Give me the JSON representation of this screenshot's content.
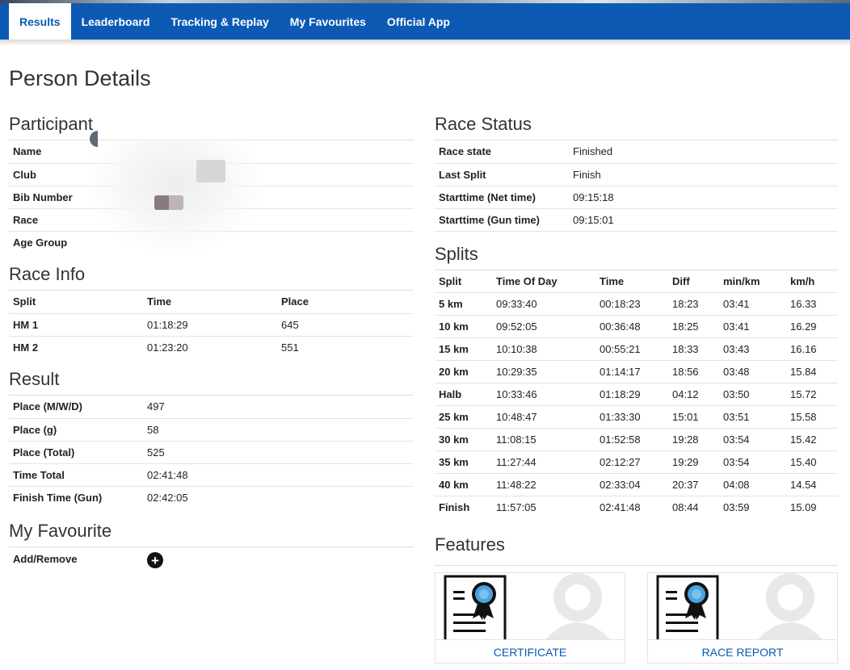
{
  "nav": {
    "items": [
      {
        "label": "Results",
        "active": true
      },
      {
        "label": "Leaderboard",
        "active": false
      },
      {
        "label": "Tracking & Replay",
        "active": false
      },
      {
        "label": "My Favourites",
        "active": false
      },
      {
        "label": "Official App",
        "active": false
      }
    ]
  },
  "page_title": "Person Details",
  "participant": {
    "title": "Participant",
    "rows": [
      {
        "label": "Name",
        "value": ""
      },
      {
        "label": "Club",
        "value": ""
      },
      {
        "label": "Bib Number",
        "value": ""
      },
      {
        "label": "Race",
        "value": ""
      },
      {
        "label": "Age Group",
        "value": ""
      }
    ]
  },
  "race_info": {
    "title": "Race Info",
    "headers": [
      "Split",
      "Time",
      "Place"
    ],
    "rows": [
      [
        "HM 1",
        "01:18:29",
        "645"
      ],
      [
        "HM 2",
        "01:23:20",
        "551"
      ]
    ]
  },
  "result": {
    "title": "Result",
    "rows": [
      {
        "label": "Place (M/W/D)",
        "value": "497"
      },
      {
        "label": "Place (g)",
        "value": "58"
      },
      {
        "label": "Place (Total)",
        "value": "525"
      },
      {
        "label": "Time Total",
        "value": "02:41:48"
      },
      {
        "label": "Finish Time (Gun)",
        "value": "02:42:05"
      }
    ]
  },
  "favourite": {
    "title": "My Favourite",
    "label": "Add/Remove",
    "icon": "plus-circle-icon"
  },
  "race_status": {
    "title": "Race Status",
    "rows": [
      {
        "label": "Race state",
        "value": "Finished"
      },
      {
        "label": "Last Split",
        "value": "Finish"
      },
      {
        "label": "Starttime (Net time)",
        "value": "09:15:18"
      },
      {
        "label": "Starttime (Gun time)",
        "value": "09:15:01"
      }
    ]
  },
  "splits": {
    "title": "Splits",
    "headers": [
      "Split",
      "Time Of Day",
      "Time",
      "Diff",
      "min/km",
      "km/h"
    ],
    "rows": [
      [
        "5 km",
        "09:33:40",
        "00:18:23",
        "18:23",
        "03:41",
        "16.33"
      ],
      [
        "10 km",
        "09:52:05",
        "00:36:48",
        "18:25",
        "03:41",
        "16.29"
      ],
      [
        "15 km",
        "10:10:38",
        "00:55:21",
        "18:33",
        "03:43",
        "16.16"
      ],
      [
        "20 km",
        "10:29:35",
        "01:14:17",
        "18:56",
        "03:48",
        "15.84"
      ],
      [
        "Halb",
        "10:33:46",
        "01:18:29",
        "04:12",
        "03:50",
        "15.72"
      ],
      [
        "25 km",
        "10:48:47",
        "01:33:30",
        "15:01",
        "03:51",
        "15.58"
      ],
      [
        "30 km",
        "11:08:15",
        "01:52:58",
        "19:28",
        "03:54",
        "15.42"
      ],
      [
        "35 km",
        "11:27:44",
        "02:12:27",
        "19:29",
        "03:54",
        "15.40"
      ],
      [
        "40 km",
        "11:48:22",
        "02:33:04",
        "20:37",
        "04:08",
        "14.54"
      ],
      [
        "Finish",
        "11:57:05",
        "02:41:48",
        "08:44",
        "03:59",
        "15.09"
      ]
    ]
  },
  "features": {
    "title": "Features",
    "cards": [
      {
        "label": "CERTIFICATE",
        "icon": "certificate-icon"
      },
      {
        "label": "RACE REPORT",
        "icon": "race-report-icon"
      }
    ]
  },
  "colors": {
    "primary": "#0c5ab4",
    "text": "#222222",
    "border": "#e3e3e3"
  }
}
